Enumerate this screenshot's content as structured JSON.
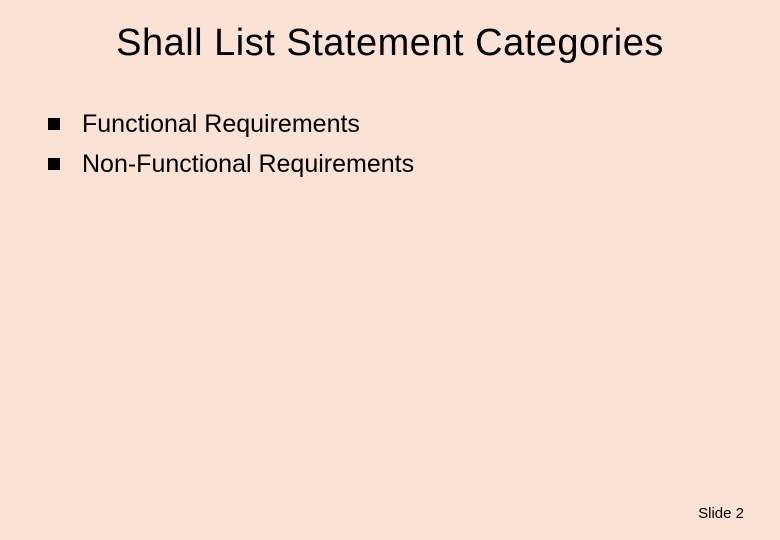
{
  "slide": {
    "background_color": "#fae3d4",
    "text_color": "#000000",
    "title": {
      "text": "Shall List Statement Categories",
      "fontsize": 38,
      "font_family": "Comic Sans MS"
    },
    "bullets": {
      "marker_shape": "square",
      "marker_color": "#000000",
      "marker_size": 12,
      "fontsize": 25,
      "items": [
        {
          "text": "Functional Requirements"
        },
        {
          "text": "Non-Functional Requirements"
        }
      ]
    },
    "footer": {
      "label": "Slide",
      "number": "2",
      "fontsize": 15,
      "font_family": "Arial"
    }
  }
}
